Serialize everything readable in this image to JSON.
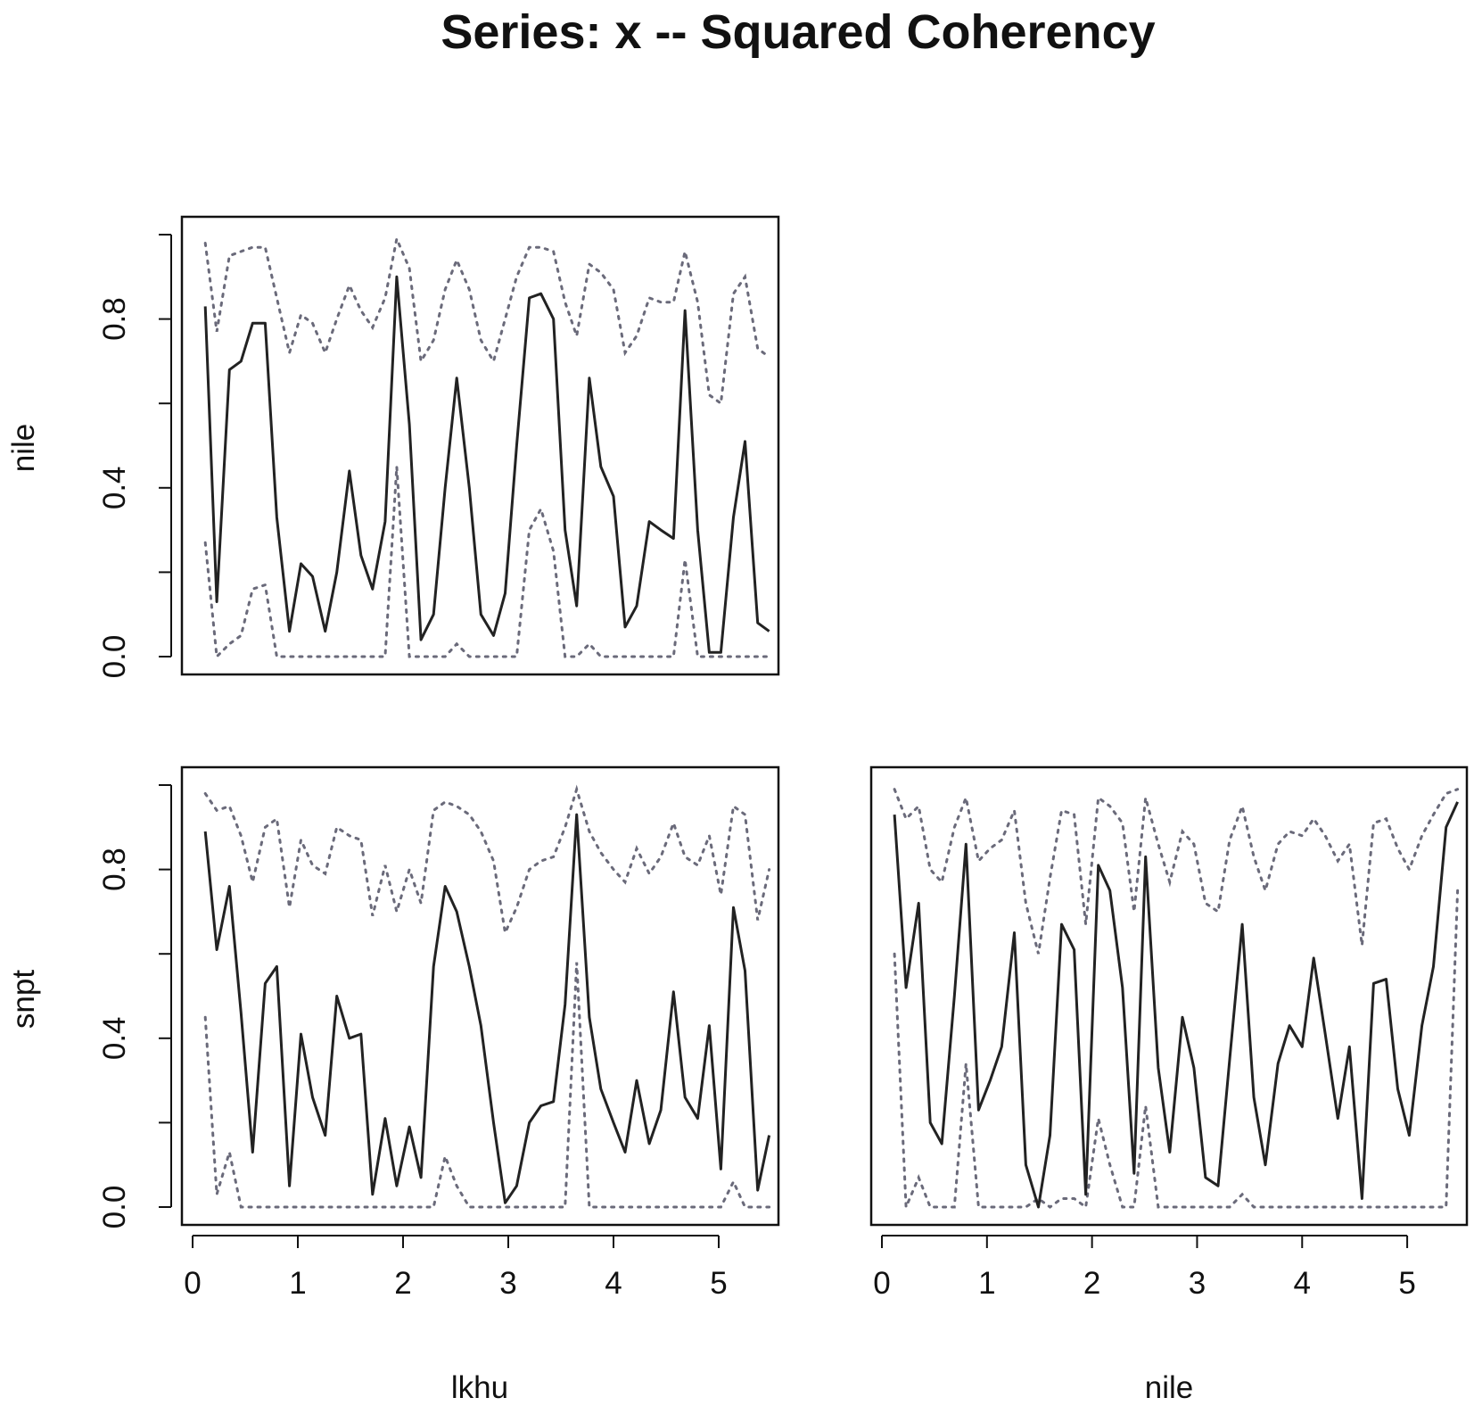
{
  "chart_data": {
    "type": "line",
    "title": "Series: x --  Squared Coherency",
    "xlim": [
      0,
      5.5
    ],
    "ylim": [
      0,
      1
    ],
    "x_ticks": [
      "0",
      "1",
      "2",
      "3",
      "4",
      "5"
    ],
    "y_ticks": [
      "0.0",
      "0.4",
      "0.8"
    ],
    "column_labels": [
      "lkhu",
      "nile"
    ],
    "row_labels": [
      "nile",
      "snpt"
    ],
    "colors": {
      "coherency": "#222222",
      "bounds": "#6a6a7a"
    },
    "panels": [
      {
        "row": "nile",
        "column": "lkhu",
        "show_x_axis": false,
        "x": [
          0.12,
          0.23,
          0.35,
          0.46,
          0.57,
          0.69,
          0.8,
          0.92,
          1.03,
          1.14,
          1.26,
          1.37,
          1.49,
          1.6,
          1.71,
          1.83,
          1.94,
          2.06,
          2.17,
          2.29,
          2.4,
          2.51,
          2.63,
          2.74,
          2.86,
          2.97,
          3.08,
          3.2,
          3.31,
          3.43,
          3.54,
          3.65,
          3.77,
          3.88,
          4.0,
          4.11,
          4.22,
          4.34,
          4.45,
          4.57,
          4.68,
          4.8,
          4.91,
          5.02,
          5.14,
          5.25,
          5.37,
          5.48
        ],
        "coherency": [
          0.83,
          0.13,
          0.68,
          0.7,
          0.79,
          0.79,
          0.33,
          0.06,
          0.22,
          0.19,
          0.06,
          0.2,
          0.44,
          0.24,
          0.16,
          0.32,
          0.9,
          0.55,
          0.04,
          0.1,
          0.4,
          0.66,
          0.4,
          0.1,
          0.05,
          0.15,
          0.5,
          0.85,
          0.86,
          0.8,
          0.3,
          0.12,
          0.66,
          0.45,
          0.38,
          0.07,
          0.12,
          0.32,
          0.3,
          0.28,
          0.82,
          0.3,
          0.01,
          0.01,
          0.33,
          0.51,
          0.08,
          0.06
        ],
        "upper": [
          0.98,
          0.77,
          0.95,
          0.96,
          0.97,
          0.97,
          0.85,
          0.72,
          0.81,
          0.79,
          0.72,
          0.8,
          0.88,
          0.82,
          0.78,
          0.85,
          0.99,
          0.92,
          0.7,
          0.75,
          0.87,
          0.94,
          0.87,
          0.75,
          0.7,
          0.8,
          0.9,
          0.97,
          0.97,
          0.96,
          0.84,
          0.76,
          0.93,
          0.91,
          0.87,
          0.72,
          0.76,
          0.85,
          0.84,
          0.84,
          0.96,
          0.84,
          0.62,
          0.6,
          0.86,
          0.9,
          0.73,
          0.71
        ],
        "lower": [
          0.27,
          0.0,
          0.03,
          0.05,
          0.16,
          0.17,
          0.0,
          0.0,
          0.0,
          0.0,
          0.0,
          0.0,
          0.0,
          0.0,
          0.0,
          0.0,
          0.45,
          0.0,
          0.0,
          0.0,
          0.0,
          0.03,
          0.0,
          0.0,
          0.0,
          0.0,
          0.0,
          0.3,
          0.35,
          0.25,
          0.0,
          0.0,
          0.03,
          0.0,
          0.0,
          0.0,
          0.0,
          0.0,
          0.0,
          0.0,
          0.23,
          0.0,
          0.0,
          0.0,
          0.0,
          0.0,
          0.0,
          0.0
        ]
      },
      {
        "row": "snpt",
        "column": "lkhu",
        "show_x_axis": true,
        "x": [
          0.12,
          0.23,
          0.35,
          0.46,
          0.57,
          0.69,
          0.8,
          0.92,
          1.03,
          1.14,
          1.26,
          1.37,
          1.49,
          1.6,
          1.71,
          1.83,
          1.94,
          2.06,
          2.17,
          2.29,
          2.4,
          2.51,
          2.63,
          2.74,
          2.86,
          2.97,
          3.08,
          3.2,
          3.31,
          3.43,
          3.54,
          3.65,
          3.77,
          3.88,
          4.0,
          4.11,
          4.22,
          4.34,
          4.45,
          4.57,
          4.68,
          4.8,
          4.91,
          5.02,
          5.14,
          5.25,
          5.37,
          5.48
        ],
        "coherency": [
          0.89,
          0.61,
          0.76,
          0.46,
          0.13,
          0.53,
          0.57,
          0.05,
          0.41,
          0.26,
          0.17,
          0.5,
          0.4,
          0.41,
          0.03,
          0.21,
          0.05,
          0.19,
          0.07,
          0.57,
          0.76,
          0.7,
          0.57,
          0.43,
          0.2,
          0.01,
          0.05,
          0.2,
          0.24,
          0.25,
          0.48,
          0.93,
          0.45,
          0.28,
          0.2,
          0.13,
          0.3,
          0.15,
          0.23,
          0.51,
          0.26,
          0.21,
          0.43,
          0.09,
          0.71,
          0.56,
          0.04,
          0.17
        ],
        "upper": [
          0.98,
          0.94,
          0.95,
          0.88,
          0.77,
          0.9,
          0.92,
          0.71,
          0.87,
          0.81,
          0.79,
          0.9,
          0.88,
          0.87,
          0.69,
          0.81,
          0.7,
          0.8,
          0.72,
          0.94,
          0.96,
          0.95,
          0.93,
          0.89,
          0.82,
          0.65,
          0.71,
          0.8,
          0.82,
          0.83,
          0.9,
          0.99,
          0.89,
          0.84,
          0.8,
          0.77,
          0.85,
          0.79,
          0.83,
          0.91,
          0.83,
          0.81,
          0.88,
          0.74,
          0.95,
          0.93,
          0.68,
          0.8
        ],
        "lower": [
          0.45,
          0.03,
          0.13,
          0.0,
          0.0,
          0.0,
          0.0,
          0.0,
          0.0,
          0.0,
          0.0,
          0.0,
          0.0,
          0.0,
          0.0,
          0.0,
          0.0,
          0.0,
          0.0,
          0.0,
          0.12,
          0.05,
          0.0,
          0.0,
          0.0,
          0.0,
          0.0,
          0.0,
          0.0,
          0.0,
          0.0,
          0.58,
          0.0,
          0.0,
          0.0,
          0.0,
          0.0,
          0.0,
          0.0,
          0.0,
          0.0,
          0.0,
          0.0,
          0.0,
          0.06,
          0.0,
          0.0,
          0.0
        ]
      },
      {
        "row": "snpt",
        "column": "nile",
        "show_x_axis": true,
        "x": [
          0.12,
          0.23,
          0.35,
          0.46,
          0.57,
          0.69,
          0.8,
          0.92,
          1.03,
          1.14,
          1.26,
          1.37,
          1.49,
          1.6,
          1.71,
          1.83,
          1.94,
          2.06,
          2.17,
          2.29,
          2.4,
          2.51,
          2.63,
          2.74,
          2.86,
          2.97,
          3.08,
          3.2,
          3.31,
          3.43,
          3.54,
          3.65,
          3.77,
          3.88,
          4.0,
          4.11,
          4.22,
          4.34,
          4.45,
          4.57,
          4.68,
          4.8,
          4.91,
          5.02,
          5.14,
          5.25,
          5.37,
          5.48
        ],
        "coherency": [
          0.93,
          0.52,
          0.72,
          0.2,
          0.15,
          0.5,
          0.86,
          0.23,
          0.3,
          0.38,
          0.65,
          0.1,
          0.0,
          0.17,
          0.67,
          0.61,
          0.03,
          0.81,
          0.75,
          0.52,
          0.08,
          0.83,
          0.33,
          0.13,
          0.45,
          0.33,
          0.07,
          0.05,
          0.35,
          0.67,
          0.26,
          0.1,
          0.34,
          0.43,
          0.38,
          0.59,
          0.41,
          0.21,
          0.38,
          0.02,
          0.53,
          0.54,
          0.28,
          0.17,
          0.43,
          0.57,
          0.9,
          0.96
        ],
        "upper": [
          0.99,
          0.92,
          0.95,
          0.8,
          0.77,
          0.9,
          0.97,
          0.82,
          0.85,
          0.87,
          0.94,
          0.72,
          0.6,
          0.78,
          0.94,
          0.93,
          0.67,
          0.97,
          0.95,
          0.91,
          0.7,
          0.97,
          0.86,
          0.77,
          0.89,
          0.86,
          0.72,
          0.7,
          0.87,
          0.95,
          0.83,
          0.75,
          0.86,
          0.89,
          0.88,
          0.92,
          0.88,
          0.82,
          0.86,
          0.62,
          0.91,
          0.92,
          0.85,
          0.8,
          0.88,
          0.93,
          0.98,
          0.99
        ],
        "lower": [
          0.6,
          0.0,
          0.07,
          0.0,
          0.0,
          0.0,
          0.34,
          0.0,
          0.0,
          0.0,
          0.0,
          0.0,
          0.02,
          0.0,
          0.02,
          0.02,
          0.0,
          0.21,
          0.1,
          0.0,
          0.0,
          0.24,
          0.0,
          0.0,
          0.0,
          0.0,
          0.0,
          0.0,
          0.0,
          0.03,
          0.0,
          0.0,
          0.0,
          0.0,
          0.0,
          0.0,
          0.0,
          0.0,
          0.0,
          0.0,
          0.0,
          0.0,
          0.0,
          0.0,
          0.0,
          0.0,
          0.0,
          0.75
        ]
      }
    ]
  }
}
